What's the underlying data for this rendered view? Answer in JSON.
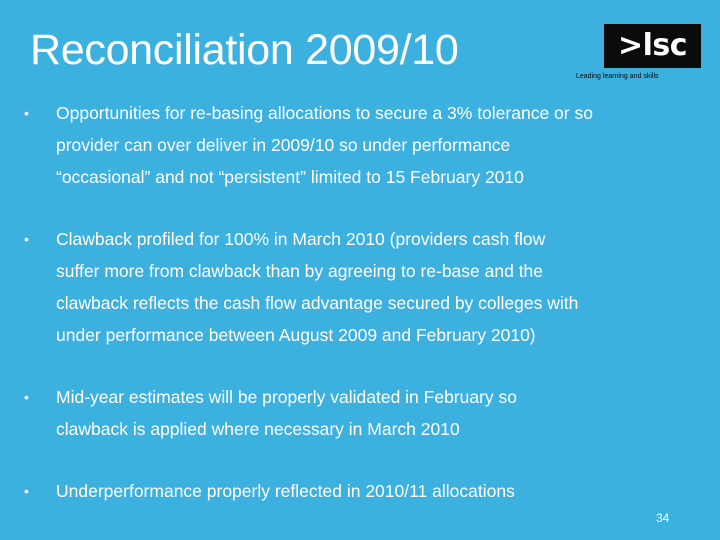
{
  "slide": {
    "title": "Reconciliation 2009/10",
    "logo": {
      "mark": ">lsc",
      "tagline": "Leading learning and skills"
    },
    "bullet_symbol": "•",
    "bullets": [
      {
        "lines": [
          "Opportunities for re-basing allocations to secure a 3% tolerance or so",
          "provider can over deliver in 2009/10 so under performance",
          "“occasional” and not “persistent”  limited to 15 February 2010"
        ]
      },
      {
        "lines": [
          "Clawback profiled for 100% in March 2010 (providers cash flow",
          "suffer more from clawback than by agreeing to re-base and the",
          "clawback reflects the cash flow advantage secured by colleges with",
          "under performance between August 2009 and February 2010)"
        ]
      },
      {
        "lines": [
          "Mid-year estimates will be properly validated in February so",
          "clawback is applied where necessary in March 2010"
        ]
      },
      {
        "lines": [
          "Underperformance properly reflected in 2010/11 allocations"
        ]
      }
    ],
    "page_number": "34",
    "colors": {
      "background": "#3cb0de",
      "text": "#ffffff",
      "logo_box": "#0b0b0b"
    }
  }
}
